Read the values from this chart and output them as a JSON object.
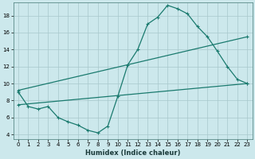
{
  "xlabel": "Humidex (Indice chaleur)",
  "bg_color": "#cce8ec",
  "grid_color": "#a8c8cc",
  "line_color": "#1a7a6e",
  "xlim": [
    -0.5,
    23.5
  ],
  "ylim": [
    3.5,
    19.5
  ],
  "yticks": [
    4,
    6,
    8,
    10,
    12,
    14,
    16,
    18
  ],
  "xticks": [
    0,
    1,
    2,
    3,
    4,
    5,
    6,
    7,
    8,
    9,
    10,
    11,
    12,
    13,
    14,
    15,
    16,
    17,
    18,
    19,
    20,
    21,
    22,
    23
  ],
  "line1_x": [
    0,
    1,
    2,
    3,
    4,
    5,
    6,
    7,
    8,
    9,
    10,
    11,
    12,
    13,
    14,
    15,
    16,
    17,
    18,
    19,
    20,
    21,
    22,
    23
  ],
  "line1_y": [
    9.0,
    7.3,
    7.0,
    7.3,
    6.0,
    5.5,
    5.1,
    4.5,
    4.2,
    5.0,
    8.5,
    12.2,
    14.0,
    17.0,
    17.8,
    19.2,
    18.8,
    18.2,
    16.7,
    15.5,
    13.8,
    12.0,
    10.5,
    10.0
  ],
  "line2_x": [
    0,
    23
  ],
  "line2_y": [
    7.5,
    10.0
  ],
  "line3_x": [
    0,
    23
  ],
  "line3_y": [
    9.2,
    15.5
  ],
  "xlabel_fontsize": 6.0,
  "tick_fontsize": 5.0
}
